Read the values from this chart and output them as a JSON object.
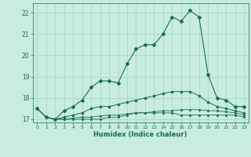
{
  "xlabel": "Humidex (Indice chaleur)",
  "x_values": [
    0,
    1,
    2,
    3,
    4,
    5,
    6,
    7,
    8,
    9,
    10,
    11,
    12,
    13,
    14,
    15,
    16,
    17,
    18,
    19,
    20,
    21,
    22,
    23
  ],
  "line_main": [
    17.5,
    17.1,
    17.0,
    17.4,
    17.6,
    17.9,
    18.5,
    18.8,
    18.8,
    18.7,
    19.6,
    20.3,
    20.5,
    20.5,
    21.0,
    21.8,
    21.6,
    22.1,
    21.8,
    19.1,
    18.0,
    17.9,
    17.6,
    17.6
  ],
  "line_avg": [
    17.5,
    17.1,
    17.0,
    17.1,
    17.2,
    17.3,
    17.5,
    17.6,
    17.6,
    17.7,
    17.8,
    17.9,
    18.0,
    18.1,
    18.2,
    18.3,
    18.3,
    18.3,
    18.1,
    17.8,
    17.6,
    17.5,
    17.4,
    17.3
  ],
  "line_min": [
    17.5,
    17.1,
    17.0,
    17.0,
    17.0,
    17.0,
    17.0,
    17.0,
    17.1,
    17.1,
    17.2,
    17.3,
    17.3,
    17.3,
    17.3,
    17.3,
    17.2,
    17.2,
    17.2,
    17.2,
    17.2,
    17.2,
    17.2,
    17.1
  ],
  "line_norm": [
    17.5,
    17.1,
    17.0,
    17.0,
    17.05,
    17.1,
    17.1,
    17.15,
    17.2,
    17.2,
    17.25,
    17.3,
    17.3,
    17.35,
    17.4,
    17.4,
    17.45,
    17.45,
    17.45,
    17.4,
    17.4,
    17.35,
    17.3,
    17.2
  ],
  "ylim": [
    16.85,
    22.45
  ],
  "xlim": [
    -0.5,
    23.5
  ],
  "yticks": [
    17,
    18,
    19,
    20,
    21,
    22
  ],
  "xticks": [
    0,
    1,
    2,
    3,
    4,
    5,
    6,
    7,
    8,
    9,
    10,
    11,
    12,
    13,
    14,
    15,
    16,
    17,
    18,
    19,
    20,
    21,
    22,
    23
  ],
  "bg_color": "#c8ece0",
  "line_color": "#1a6b5a",
  "grid_color": "#9fd4c0",
  "markersize": 2.0
}
